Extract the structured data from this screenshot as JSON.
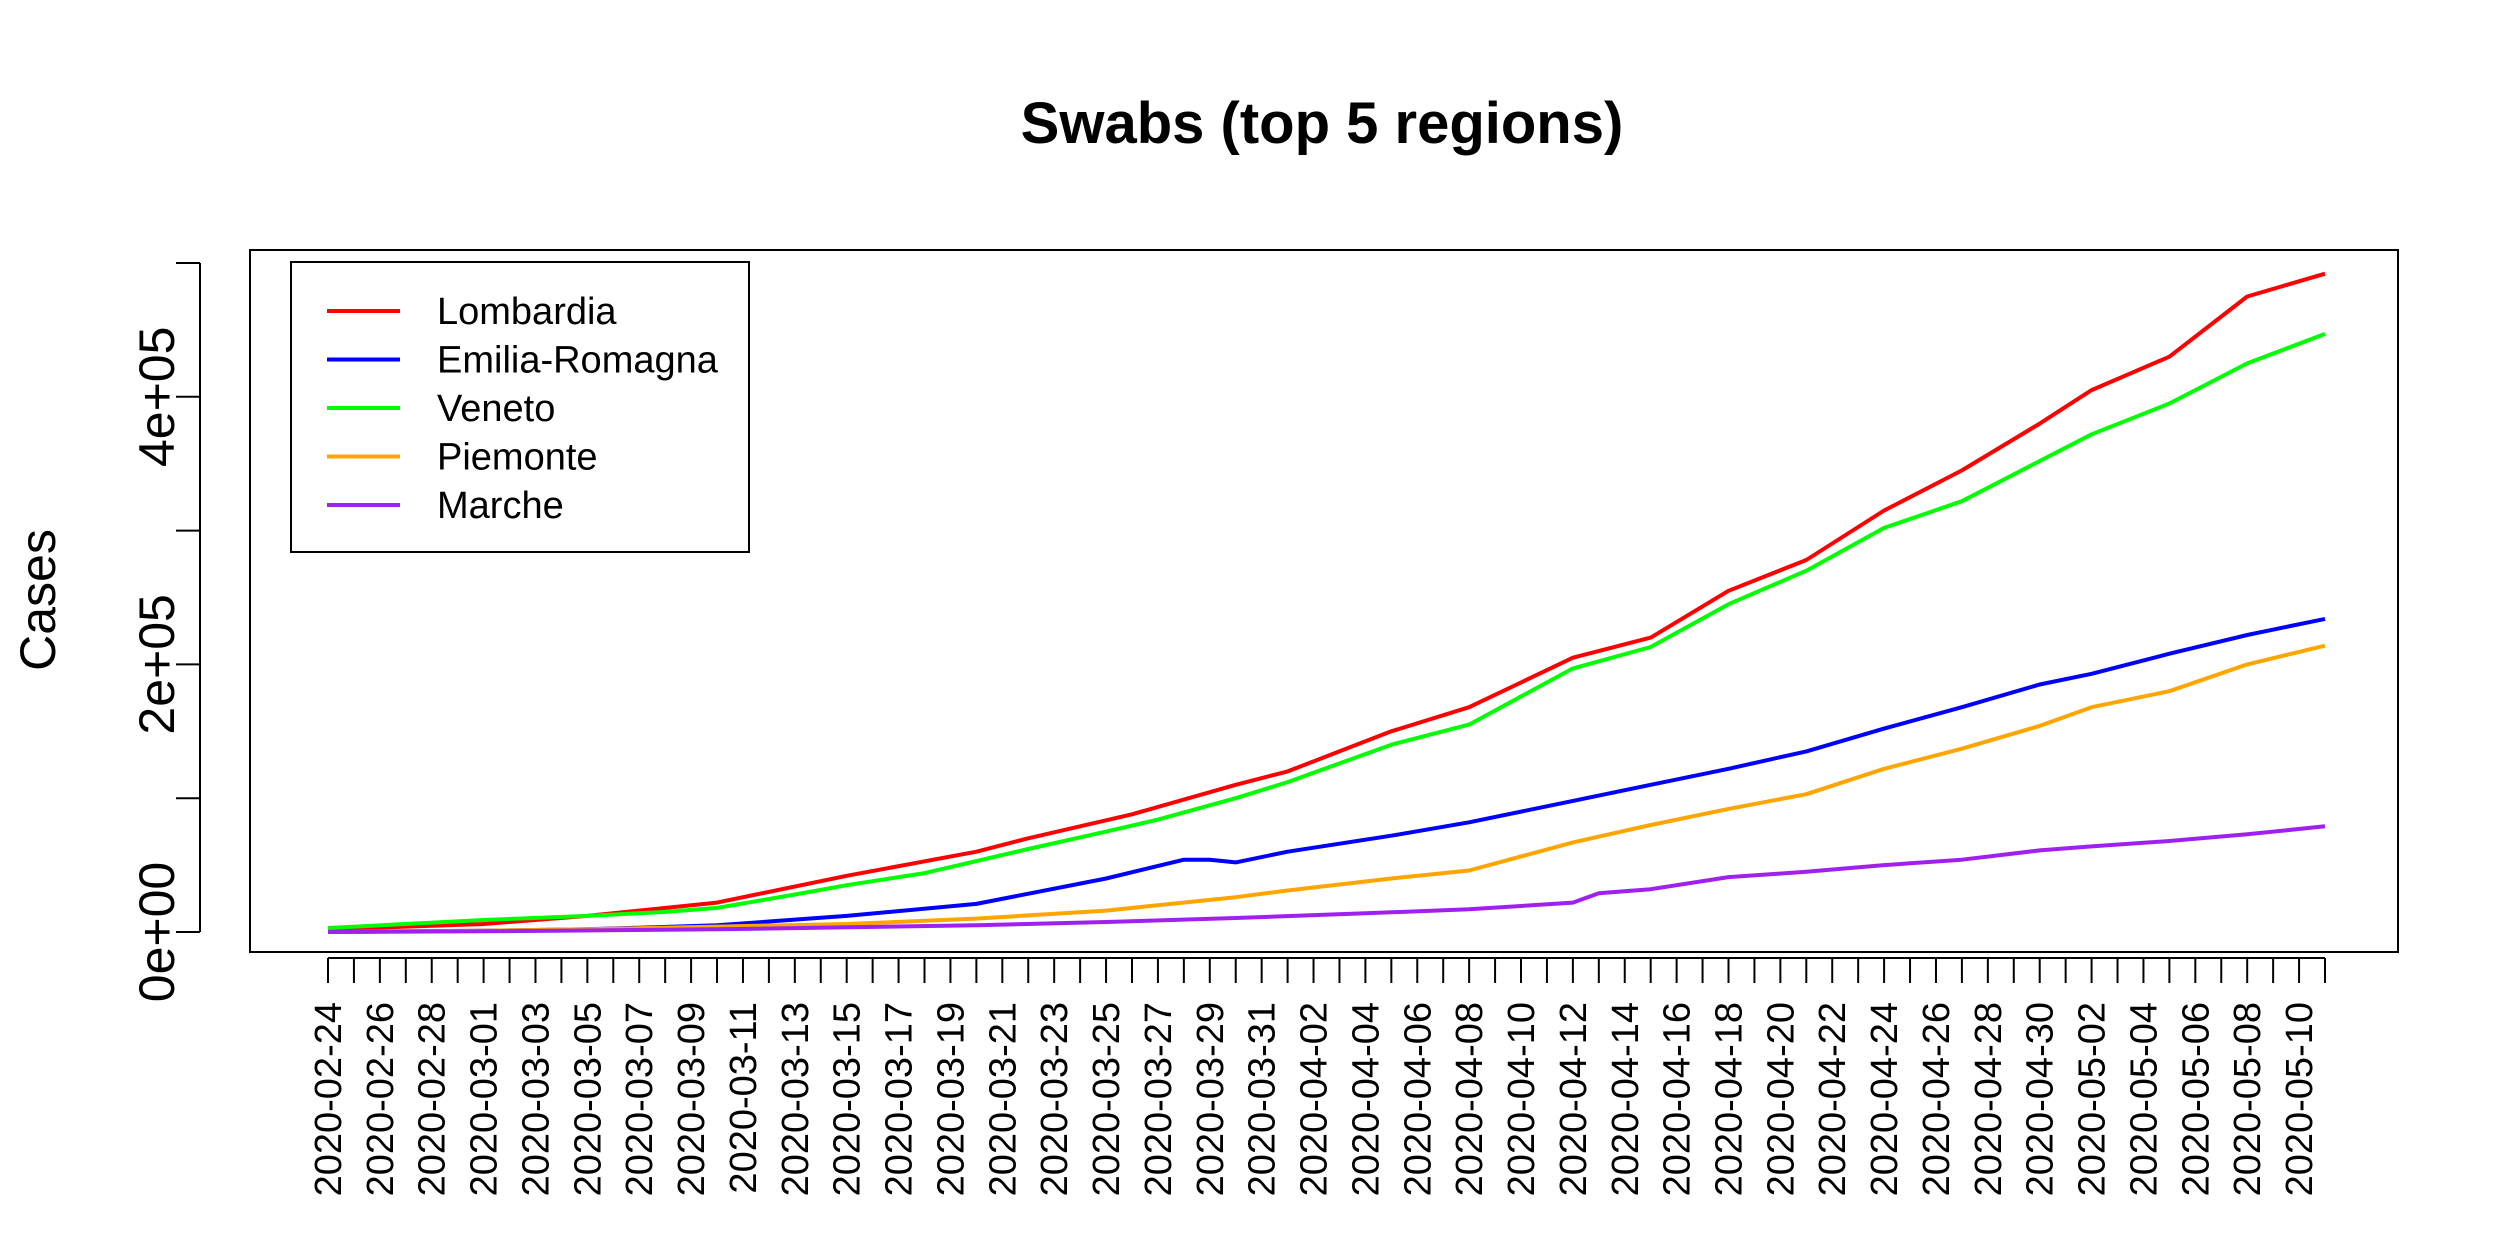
{
  "chart_data": {
    "type": "line",
    "title": "Swabs (top 5 regions)",
    "xlabel": "",
    "ylabel": "Cases",
    "ylim": [
      0,
      500000
    ],
    "y_ticks": [
      0,
      100000,
      200000,
      300000,
      400000,
      500000
    ],
    "y_tick_labels": [
      "0e+00",
      "",
      "2e+05",
      "",
      "4e+05",
      ""
    ],
    "start_date": "2020-02-24",
    "end_date": "2020-05-11",
    "x_tick_labels": [
      "2020-02-24",
      "2020-02-26",
      "2020-02-28",
      "2020-03-01",
      "2020-03-03",
      "2020-03-05",
      "2020-03-07",
      "2020-03-09",
      "2020-03-11",
      "2020-03-13",
      "2020-03-15",
      "2020-03-17",
      "2020-03-19",
      "2020-03-21",
      "2020-03-23",
      "2020-03-25",
      "2020-03-27",
      "2020-03-29",
      "2020-03-31",
      "2020-04-02",
      "2020-04-04",
      "2020-04-06",
      "2020-04-08",
      "2020-04-10",
      "2020-04-12",
      "2020-04-14",
      "2020-04-16",
      "2020-04-18",
      "2020-04-20",
      "2020-04-22",
      "2020-04-24",
      "2020-04-26",
      "2020-04-28",
      "2020-04-30",
      "2020-05-02",
      "2020-05-04",
      "2020-05-06",
      "2020-05-08",
      "2020-05-10"
    ],
    "legend_position": "top-left",
    "series": [
      {
        "name": "Lombardia",
        "color": "#ff0000",
        "x": [
          "2020-02-24",
          "2020-03-01",
          "2020-03-05",
          "2020-03-10",
          "2020-03-15",
          "2020-03-20",
          "2020-03-22",
          "2020-03-26",
          "2020-03-30",
          "2020-04-01",
          "2020-04-05",
          "2020-04-08",
          "2020-04-12",
          "2020-04-15",
          "2020-04-18",
          "2020-04-21",
          "2020-04-24",
          "2020-04-27",
          "2020-04-30",
          "2020-05-02",
          "2020-05-05",
          "2020-05-08",
          "2020-05-11"
        ],
        "values": [
          2000,
          6000,
          12000,
          22000,
          42000,
          60000,
          70000,
          88000,
          110000,
          120000,
          150000,
          168000,
          205000,
          220000,
          255000,
          278000,
          315000,
          345000,
          380000,
          405000,
          430000,
          475000,
          492000
        ]
      },
      {
        "name": "Emilia-Romagna",
        "color": "#0000ff",
        "x": [
          "2020-02-24",
          "2020-03-01",
          "2020-03-05",
          "2020-03-10",
          "2020-03-15",
          "2020-03-20",
          "2020-03-25",
          "2020-03-28",
          "2020-03-29",
          "2020-03-30",
          "2020-04-01",
          "2020-04-05",
          "2020-04-08",
          "2020-04-12",
          "2020-04-15",
          "2020-04-18",
          "2020-04-21",
          "2020-04-24",
          "2020-04-27",
          "2020-04-30",
          "2020-05-02",
          "2020-05-05",
          "2020-05-08",
          "2020-05-11"
        ],
        "values": [
          0,
          1000,
          2000,
          5000,
          12000,
          21000,
          40000,
          54000,
          54000,
          52000,
          60000,
          72000,
          82000,
          98000,
          110000,
          122000,
          135000,
          152000,
          168000,
          185000,
          193000,
          208000,
          222000,
          234000
        ]
      },
      {
        "name": "Veneto",
        "color": "#00ff00",
        "x": [
          "2020-02-24",
          "2020-03-01",
          "2020-03-05",
          "2020-03-08",
          "2020-03-10",
          "2020-03-13",
          "2020-03-15",
          "2020-03-18",
          "2020-03-20",
          "2020-03-22",
          "2020-03-25",
          "2020-03-27",
          "2020-03-30",
          "2020-04-01",
          "2020-04-05",
          "2020-04-08",
          "2020-04-12",
          "2020-04-15",
          "2020-04-18",
          "2020-04-21",
          "2020-04-24",
          "2020-04-27",
          "2020-04-30",
          "2020-05-02",
          "2020-05-05",
          "2020-05-08",
          "2020-05-11"
        ],
        "values": [
          3000,
          9000,
          12000,
          15000,
          18000,
          28000,
          35000,
          44000,
          53000,
          62000,
          75000,
          84000,
          100000,
          112000,
          140000,
          155000,
          197000,
          213000,
          245000,
          270000,
          302000,
          322000,
          352000,
          372000,
          395000,
          425000,
          447000
        ]
      },
      {
        "name": "Piemonte",
        "color": "#ffa500",
        "x": [
          "2020-02-24",
          "2020-03-01",
          "2020-03-05",
          "2020-03-10",
          "2020-03-15",
          "2020-03-20",
          "2020-03-25",
          "2020-03-30",
          "2020-04-01",
          "2020-04-05",
          "2020-04-08",
          "2020-04-12",
          "2020-04-15",
          "2020-04-18",
          "2020-04-21",
          "2020-04-24",
          "2020-04-27",
          "2020-04-30",
          "2020-05-02",
          "2020-05-05",
          "2020-05-08",
          "2020-05-11"
        ],
        "values": [
          0,
          1000,
          2000,
          4000,
          6000,
          10000,
          16000,
          26000,
          31000,
          40000,
          46000,
          67000,
          80000,
          92000,
          103000,
          122000,
          137000,
          154000,
          168000,
          180000,
          200000,
          214000
        ]
      },
      {
        "name": "Marche",
        "color": "#a020f0",
        "x": [
          "2020-02-24",
          "2020-03-01",
          "2020-03-10",
          "2020-03-20",
          "2020-03-25",
          "2020-03-30",
          "2020-04-04",
          "2020-04-08",
          "2020-04-12",
          "2020-04-13",
          "2020-04-15",
          "2020-04-18",
          "2020-04-21",
          "2020-04-24",
          "2020-04-27",
          "2020-04-30",
          "2020-05-02",
          "2020-05-05",
          "2020-05-08",
          "2020-05-11"
        ],
        "values": [
          0,
          500,
          2000,
          5000,
          7500,
          10500,
          14000,
          17000,
          22000,
          29000,
          32000,
          41000,
          45000,
          50000,
          54000,
          61000,
          64000,
          68000,
          73000,
          79000
        ]
      }
    ]
  }
}
